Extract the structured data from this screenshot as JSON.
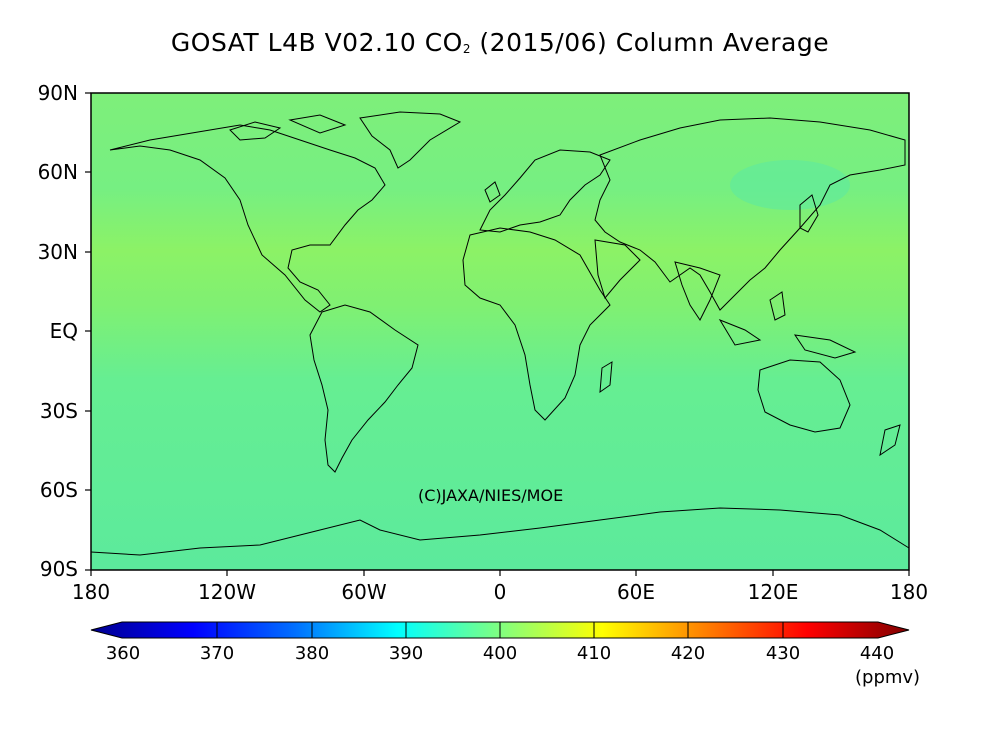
{
  "title": {
    "prefix": "GOSAT L4B V02.10 CO",
    "subscript": "2",
    "suffix": " (2015/06) Column Average"
  },
  "map": {
    "projection": "equirectangular",
    "background_color": "#6ef08a",
    "credit": "(C)JAXA/NIES/MOE",
    "lat_labels": [
      "90N",
      "60N",
      "30N",
      "EQ",
      "30S",
      "60S",
      "90S"
    ],
    "lon_labels": [
      "180",
      "120W",
      "60W",
      "0",
      "60E",
      "120E",
      "180"
    ]
  },
  "colorbar": {
    "labels": [
      "360",
      "370",
      "380",
      "390",
      "400",
      "410",
      "420",
      "430",
      "440"
    ],
    "unit": "(ppmv)",
    "min": 360,
    "max": 440,
    "stops": [
      "#00008f",
      "#0000ff",
      "#0080ff",
      "#00ffff",
      "#80ff80",
      "#ffff00",
      "#ff8000",
      "#ff0000",
      "#800000"
    ]
  },
  "colors": {
    "field_main": "#6ef08a",
    "field_tropics": "#86f26a",
    "field_south": "#5ceb9c",
    "coastline": "#000000"
  }
}
